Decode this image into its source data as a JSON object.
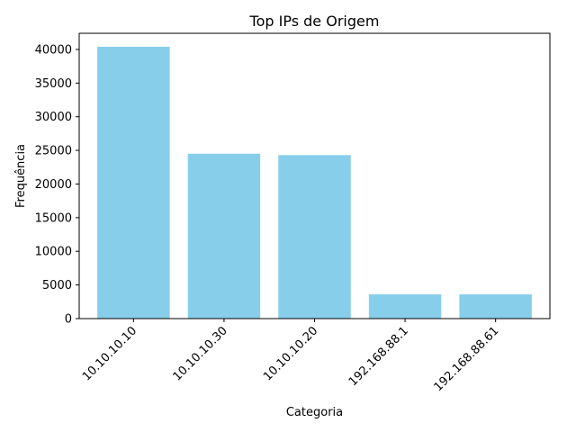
{
  "chart_data": {
    "type": "bar",
    "title": "Top IPs de Origem",
    "xlabel": "Categoria",
    "ylabel": "Frequência",
    "categories": [
      "10.10.10.10",
      "10.10.10.30",
      "10.10.10.20",
      "192.168.88.1",
      "192.168.88.61"
    ],
    "values": [
      40400,
      24500,
      24300,
      3600,
      3600
    ],
    "ylim": [
      0,
      42400
    ],
    "yticks": [
      0,
      5000,
      10000,
      15000,
      20000,
      25000,
      30000,
      35000,
      40000
    ],
    "bar_color": "#87ceeb",
    "grid": false,
    "legend": "none"
  }
}
